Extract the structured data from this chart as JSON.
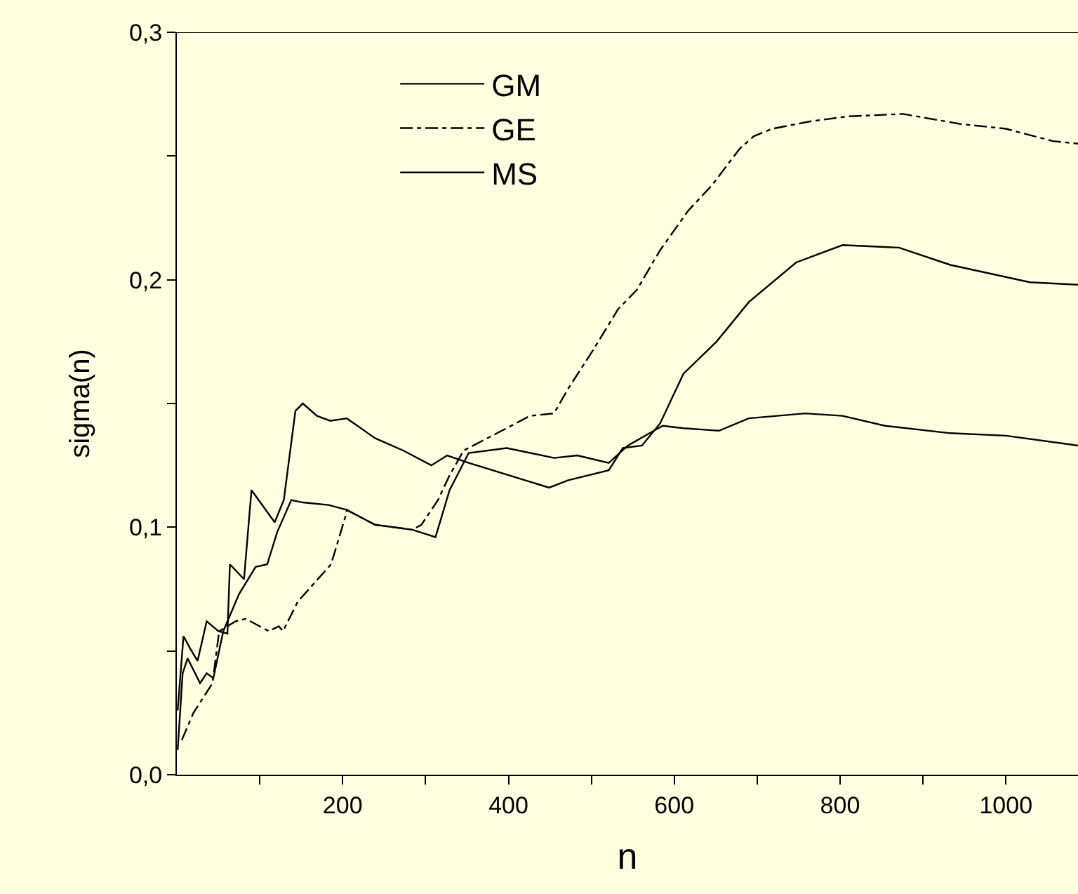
{
  "chart_data": {
    "type": "line",
    "xlabel": "n",
    "ylabel": "sigma(n)",
    "xlim": [
      0,
      1087
    ],
    "ylim": [
      0,
      0.3
    ],
    "xticks": [
      {
        "value": 100,
        "label": null
      },
      200,
      {
        "value": 300,
        "label": null
      },
      400,
      {
        "value": 500,
        "label": null
      },
      600,
      {
        "value": 700,
        "label": null
      },
      800,
      {
        "value": 900,
        "label": null
      },
      1000
    ],
    "yticks": [
      {
        "value": 0,
        "label": "0,0"
      },
      {
        "value": 0.05,
        "label": null
      },
      {
        "value": 0.1,
        "label": "0,1"
      },
      {
        "value": 0.15,
        "label": null
      },
      {
        "value": 0.2,
        "label": "0,2"
      },
      {
        "value": 0.25,
        "label": null
      },
      {
        "value": 0.3,
        "label": "0,3"
      }
    ],
    "grid": false,
    "legend": "top left",
    "marker": "none",
    "series": [
      {
        "name": "GM",
        "color": "#000000",
        "line_style": "solid",
        "x": [
          1,
          8,
          16,
          25,
          36,
          50,
          61,
          64,
          81,
          90,
          118,
          129,
          143,
          152,
          169,
          185,
          205,
          239,
          273,
          307,
          326,
          352,
          449,
          472,
          521,
          538,
          561,
          583,
          611,
          651,
          690,
          747,
          803,
          871,
          933,
          1029,
          1087
        ],
        "values": [
          0.026,
          0.056,
          0.051,
          0.046,
          0.062,
          0.058,
          0.057,
          0.085,
          0.079,
          0.115,
          0.102,
          0.111,
          0.147,
          0.15,
          0.145,
          0.143,
          0.144,
          0.136,
          0.131,
          0.125,
          0.129,
          0.126,
          0.116,
          0.119,
          0.123,
          0.132,
          0.133,
          0.142,
          0.162,
          0.175,
          0.191,
          0.207,
          0.214,
          0.213,
          0.206,
          0.199,
          0.198
        ]
      },
      {
        "name": "GE",
        "color": "#000000",
        "line_style": "dashdot",
        "x": [
          6,
          20,
          43,
          51,
          71,
          83,
          111,
          123,
          128,
          146,
          186,
          203,
          205,
          239,
          284,
          295,
          315,
          329,
          346,
          392,
          426,
          455,
          472,
          501,
          532,
          555,
          583,
          617,
          645,
          679,
          696,
          718,
          764,
          809,
          876,
          944,
          1000,
          1057,
          1087
        ],
        "values": [
          0.014,
          0.025,
          0.037,
          0.058,
          0.062,
          0.063,
          0.058,
          0.06,
          0.058,
          0.07,
          0.085,
          0.104,
          0.107,
          0.101,
          0.099,
          0.101,
          0.111,
          0.121,
          0.131,
          0.139,
          0.145,
          0.146,
          0.156,
          0.171,
          0.188,
          0.196,
          0.212,
          0.228,
          0.238,
          0.253,
          0.258,
          0.261,
          0.264,
          0.266,
          0.267,
          0.263,
          0.261,
          0.256,
          0.255
        ]
      },
      {
        "name": "MS",
        "color": "#000000",
        "line_style": "solid",
        "x": [
          1,
          7,
          13,
          28,
          36,
          44,
          56,
          75,
          95,
          109,
          121,
          138,
          152,
          183,
          205,
          239,
          284,
          312,
          329,
          352,
          398,
          455,
          483,
          521,
          544,
          586,
          611,
          654,
          690,
          758,
          803,
          854,
          933,
          1000,
          1087
        ],
        "values": [
          0.01,
          0.041,
          0.047,
          0.037,
          0.041,
          0.039,
          0.058,
          0.073,
          0.084,
          0.085,
          0.098,
          0.111,
          0.11,
          0.109,
          0.107,
          0.101,
          0.099,
          0.096,
          0.115,
          0.13,
          0.132,
          0.128,
          0.129,
          0.126,
          0.133,
          0.141,
          0.14,
          0.139,
          0.144,
          0.146,
          0.145,
          0.141,
          0.138,
          0.137,
          0.133
        ]
      }
    ]
  }
}
